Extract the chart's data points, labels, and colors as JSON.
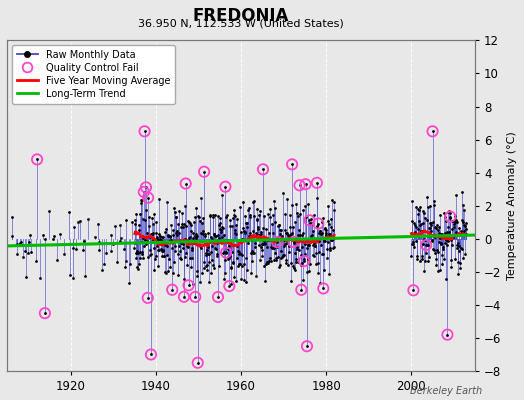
{
  "title": "FREDONIA",
  "subtitle": "36.950 N, 112.533 W (United States)",
  "ylabel_right": "Temperature Anomaly (°C)",
  "watermark": "Berkeley Earth",
  "ylim": [
    -8,
    12
  ],
  "yticks": [
    -8,
    -6,
    -4,
    -2,
    0,
    2,
    4,
    6,
    8,
    10,
    12
  ],
  "xlim": [
    1905,
    2015
  ],
  "xticks": [
    1920,
    1940,
    1960,
    1980,
    2000
  ],
  "year_start": 1906,
  "year_end": 2012,
  "sparse_end": 1935,
  "dense_start": 1935,
  "dense_end": 1982,
  "gap_start": 1982,
  "gap_end": 2000,
  "post_start": 2000,
  "post_end": 2012,
  "bg_color": "#e8e8e8",
  "plot_bg_color": "#e8e8e8",
  "line_color": "#4444cc",
  "dot_color": "#000000",
  "ma_color": "#ff0000",
  "trend_color": "#00bb00",
  "qc_color": "#ff44cc",
  "seed": 17
}
